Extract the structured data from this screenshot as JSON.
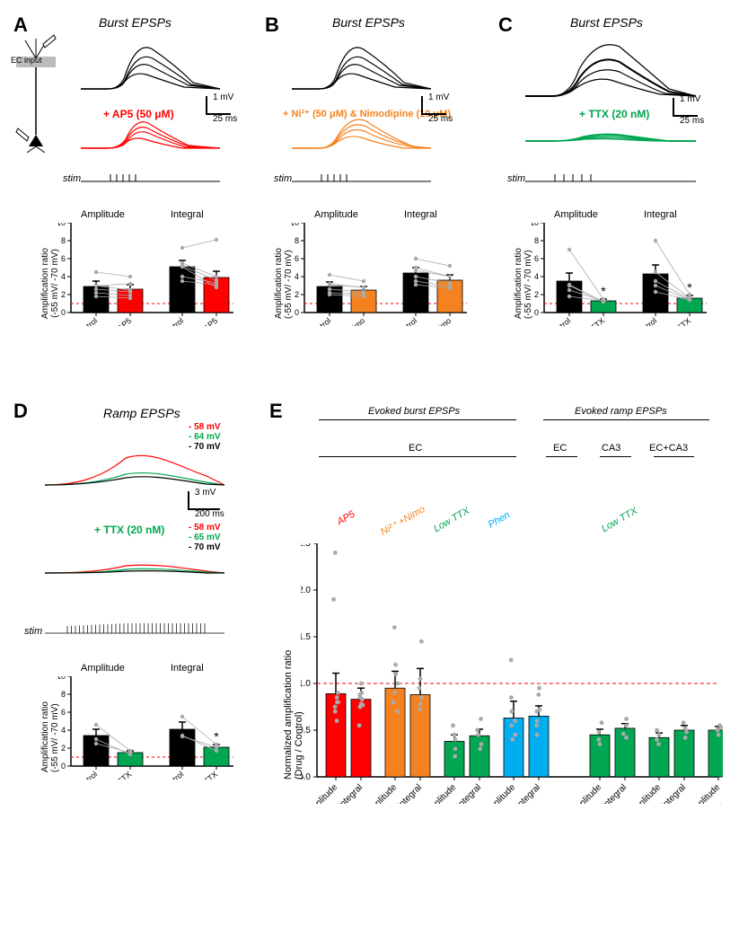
{
  "colors": {
    "black": "#000000",
    "red": "#ff0000",
    "orange": "#f58220",
    "green": "#00a651",
    "cyan": "#00aeef",
    "grey": "#aaaaaa",
    "dashRed": "#ff0000",
    "barBlack": "#000000"
  },
  "A": {
    "label": "A",
    "title": "Burst EPSPs",
    "drug": "+ AP5 (50 μM)",
    "scalebar_v": "1 mV",
    "scalebar_h": "25 ms",
    "stim": "stim",
    "sub_amp": "Amplitude",
    "sub_int": "Integral",
    "ylabel": "Amplification ratio\n(-55 mV/ -70 mV)",
    "ymax": 10,
    "ytick": 2,
    "bars": {
      "amp_ctrl": 2.9,
      "amp_drug": 2.6,
      "int_ctrl": 5.1,
      "int_drug": 3.9
    },
    "err": {
      "amp_ctrl": 0.6,
      "amp_drug": 0.5,
      "int_ctrl": 0.7,
      "int_drug": 0.7
    },
    "points": {
      "amp": [
        [
          2.2,
          1.9
        ],
        [
          3.0,
          2.5
        ],
        [
          2.6,
          2.3
        ],
        [
          4.5,
          4.0
        ],
        [
          1.8,
          1.6
        ],
        [
          3.0,
          3.2
        ]
      ],
      "int": [
        [
          4.0,
          3.3
        ],
        [
          5.2,
          3.6
        ],
        [
          5.5,
          4.0
        ],
        [
          7.2,
          8.1
        ],
        [
          3.5,
          3.1
        ],
        [
          5.1,
          2.8
        ]
      ]
    },
    "xticks": [
      "Control",
      "+ AP5",
      "Control",
      "+ AP5"
    ]
  },
  "B": {
    "label": "B",
    "title": "Burst EPSPs",
    "drug": "+ Ni²⁺ (50 μM) & Nimodipine (10 μM)",
    "scalebar_v": "1 mV",
    "scalebar_h": "25 ms",
    "stim": "stim",
    "sub_amp": "Amplitude",
    "sub_int": "Integral",
    "ylabel": "Amplification ratio\n(-55 mV/ -70 mV)",
    "ymax": 10,
    "ytick": 2,
    "bars": {
      "amp_ctrl": 2.9,
      "amp_drug": 2.5,
      "int_ctrl": 4.4,
      "int_drug": 3.6
    },
    "err": {
      "amp_ctrl": 0.5,
      "amp_drug": 0.4,
      "int_ctrl": 0.6,
      "int_drug": 0.6
    },
    "points": {
      "amp": [
        [
          2.0,
          1.8
        ],
        [
          2.6,
          2.3
        ],
        [
          3.1,
          2.8
        ],
        [
          4.2,
          3.5
        ],
        [
          2.2,
          2.1
        ],
        [
          3.2,
          2.8
        ]
      ],
      "int": [
        [
          3.1,
          2.7
        ],
        [
          4.0,
          3.3
        ],
        [
          4.7,
          4.0
        ],
        [
          6.0,
          5.2
        ],
        [
          3.5,
          2.9
        ],
        [
          5.0,
          4.0
        ]
      ]
    },
    "xticks": [
      "Control",
      "+ Ni²⁺ & Nimo",
      "Control",
      "+ Ni²⁺ & Nimo"
    ]
  },
  "C": {
    "label": "C",
    "title": "Burst EPSPs",
    "drug": "+ TTX (20 nM)",
    "scalebar_v": "1 mV",
    "scalebar_h": "25 ms",
    "stim": "stim",
    "sub_amp": "Amplitude",
    "sub_int": "Integral",
    "ylabel": "Amplification ratio\n(-55 mV/ -70 mV)",
    "ymax": 10,
    "ytick": 2,
    "bars": {
      "amp_ctrl": 3.5,
      "amp_drug": 1.3,
      "int_ctrl": 4.3,
      "int_drug": 1.6
    },
    "err": {
      "amp_ctrl": 0.9,
      "amp_drug": 0.2,
      "int_ctrl": 1.0,
      "int_drug": 0.3
    },
    "points": {
      "amp": [
        [
          7.0,
          1.5
        ],
        [
          3.0,
          1.2
        ],
        [
          2.5,
          1.3
        ],
        [
          1.8,
          1.3
        ],
        [
          3.1,
          1.2
        ]
      ],
      "int": [
        [
          8.0,
          2.0
        ],
        [
          3.5,
          1.5
        ],
        [
          3.0,
          1.4
        ],
        [
          2.3,
          1.4
        ],
        [
          4.5,
          1.6
        ]
      ]
    },
    "sig_amp": "*",
    "sig_int": "*",
    "xticks": [
      "Control",
      "+ TTX",
      "Control",
      "+ TTX"
    ]
  },
  "D": {
    "label": "D",
    "title": "Ramp EPSPs",
    "drug": "+ TTX (20 nM)",
    "vm_labels_ctrl": [
      "- 58 mV",
      "- 64 mV",
      "- 70 mV"
    ],
    "vm_labels_drug": [
      "- 58 mV",
      "- 65 mV",
      "- 70 mV"
    ],
    "vm_colors": [
      "#ff0000",
      "#00a651",
      "#000000"
    ],
    "scalebar_v": "3 mV",
    "scalebar_h": "200 ms",
    "stim": "stim",
    "sub_amp": "Amplitude",
    "sub_int": "Integral",
    "ylabel": "Amplification ratio\n(-55 mV/ -70 mV)",
    "ymax": 10,
    "ytick": 2,
    "bars": {
      "amp_ctrl": 3.4,
      "amp_drug": 1.5,
      "int_ctrl": 4.1,
      "int_drug": 2.1
    },
    "err": {
      "amp_ctrl": 0.7,
      "amp_drug": 0.2,
      "int_ctrl": 0.8,
      "int_drug": 0.3
    },
    "points": {
      "amp": [
        [
          3.0,
          1.3
        ],
        [
          4.6,
          1.7
        ],
        [
          2.5,
          1.5
        ]
      ],
      "int": [
        [
          3.4,
          1.7
        ],
        [
          5.5,
          2.4
        ],
        [
          3.3,
          2.1
        ]
      ]
    },
    "sig_int": "*",
    "xticks": [
      "Control",
      "+ TTX",
      "Control",
      "+ TTX"
    ]
  },
  "E": {
    "label": "E",
    "header_burst": "Evoked burst EPSPs",
    "header_ramp": "Evoked ramp EPSPs",
    "ec": "EC",
    "ca3": "CA3",
    "ecca3": "EC+CA3",
    "drugs": [
      "AP5",
      "Ni²⁺ +Nimo",
      "Low TTX",
      "Phen",
      "Low TTX"
    ],
    "drug_colors": [
      "#ff0000",
      "#f58220",
      "#00a651",
      "#00aeef",
      "#00a651"
    ],
    "ylabel": "Normalized amplification ratio\n(Drug / Control)",
    "ymax": 2.5,
    "ytick": 0.5,
    "bars": [
      0.89,
      0.83,
      0.95,
      0.88,
      0.38,
      0.44,
      0.63,
      0.65,
      0.45,
      0.52,
      0.42,
      0.5,
      0.5,
      0.56
    ],
    "colors": [
      "#ff0000",
      "#ff0000",
      "#f58220",
      "#f58220",
      "#00a651",
      "#00a651",
      "#00aeef",
      "#00aeef",
      "#00a651",
      "#00a651",
      "#00a651",
      "#00a651",
      "#00a651",
      "#00a651"
    ],
    "err": [
      0.22,
      0.12,
      0.18,
      0.28,
      0.07,
      0.07,
      0.18,
      0.11,
      0.06,
      0.05,
      0.05,
      0.05,
      0.04,
      0.04
    ],
    "points": [
      [
        0.75,
        0.9,
        0.8,
        0.85,
        1.9,
        2.4,
        0.6,
        0.7,
        0.8
      ],
      [
        0.75,
        0.83,
        0.78,
        0.85,
        0.9,
        1.0,
        0.55,
        0.77,
        0.88
      ],
      [
        0.8,
        1.0,
        0.7,
        0.9,
        1.1,
        1.6,
        1.2
      ],
      [
        0.78,
        0.95,
        0.72,
        0.85,
        1.05,
        1.45
      ],
      [
        0.3,
        0.22,
        0.45,
        0.4,
        0.55
      ],
      [
        0.35,
        0.3,
        0.5,
        0.45,
        0.62
      ],
      [
        0.4,
        0.55,
        0.7,
        0.85,
        1.25,
        0.45,
        0.6
      ],
      [
        0.45,
        0.6,
        0.72,
        0.88,
        0.95,
        0.55,
        0.7
      ],
      [
        0.4,
        0.48,
        0.35,
        0.58
      ],
      [
        0.46,
        0.55,
        0.42,
        0.62
      ],
      [
        0.35,
        0.4,
        0.45,
        0.5
      ],
      [
        0.42,
        0.48,
        0.52,
        0.58
      ],
      [
        0.45,
        0.5,
        0.53,
        0.55
      ],
      [
        0.5,
        0.55,
        0.58,
        0.62
      ]
    ],
    "xticks_pair": [
      "Amplitude",
      "Integral"
    ]
  },
  "neuron": {
    "ec": "EC input"
  }
}
